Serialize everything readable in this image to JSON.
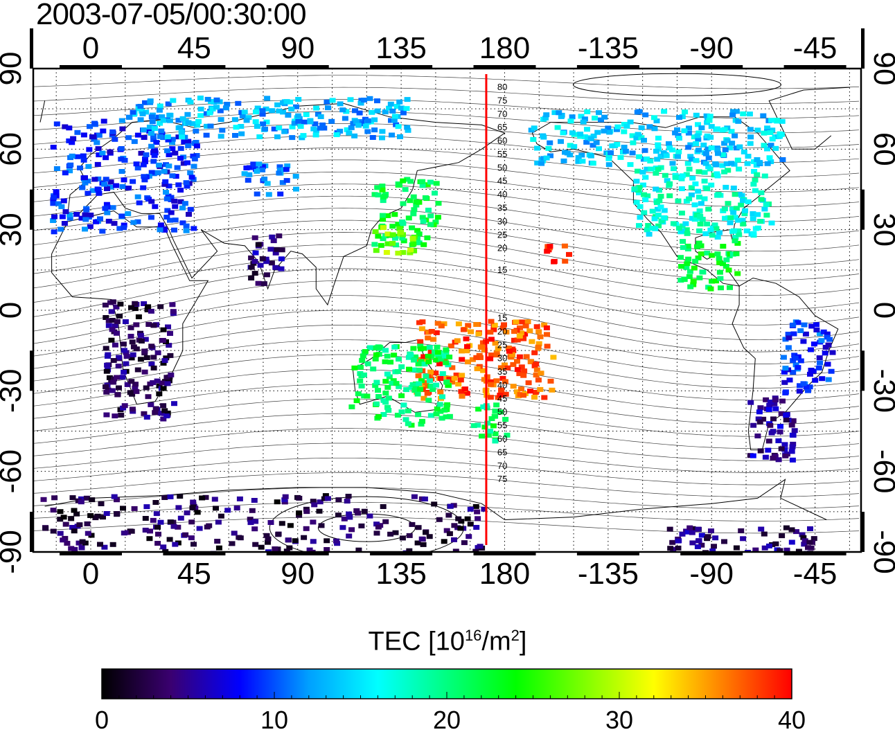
{
  "title": "2003-07-05/00:30:00",
  "map": {
    "top_ticks": [
      "0",
      "45",
      "90",
      "135",
      "180",
      "-135",
      "-90",
      "-45"
    ],
    "bottom_ticks": [
      "0",
      "45",
      "90",
      "135",
      "180",
      "-135",
      "-90",
      "-45"
    ],
    "left_ticks": [
      "90",
      "60",
      "30",
      "0",
      "-30",
      "-60",
      "-90"
    ],
    "right_ticks": [
      "90",
      "60",
      "30",
      "0",
      "-30",
      "-60",
      "-90"
    ],
    "marker_longitude": 172,
    "marker_color": "#ff0000",
    "mag_labels_north": [
      "80",
      "75",
      "70",
      "65",
      "60",
      "55",
      "50",
      "45",
      "40",
      "35",
      "30",
      "25",
      "20",
      "15"
    ],
    "mag_labels_south": [
      "15",
      "20",
      "25",
      "30",
      "35",
      "40",
      "45",
      "50",
      "55",
      "60",
      "65",
      "70",
      "75"
    ]
  },
  "colorbar": {
    "label_prefix": "TEC  [10",
    "label_exp": "16",
    "label_mid": "/m",
    "label_exp2": "2",
    "label_suffix": "]",
    "min": 0,
    "max": 40,
    "tick_labels": [
      "0",
      "10",
      "20",
      "30",
      "40"
    ],
    "colors": [
      "#000000",
      "#3a0070",
      "#0000ff",
      "#00a0ff",
      "#00ffff",
      "#00ff80",
      "#00ff00",
      "#80ff00",
      "#ffff00",
      "#ff8000",
      "#ff0000"
    ]
  },
  "tec_regions": [
    {
      "region": "europe",
      "lon": [
        -18,
        45
      ],
      "lat": [
        30,
        72
      ],
      "tec": 9
    },
    {
      "region": "arctic-eurasia",
      "lon": [
        15,
        140
      ],
      "lat": [
        65,
        80
      ],
      "tec": 13
    },
    {
      "region": "central-asia",
      "lon": [
        65,
        88
      ],
      "lat": [
        44,
        56
      ],
      "tec": 11
    },
    {
      "region": "east-asia",
      "lon": [
        122,
        150
      ],
      "lat": [
        25,
        50
      ],
      "tec": 22
    },
    {
      "region": "japan-south",
      "lon": [
        120,
        140
      ],
      "lat": [
        22,
        32
      ],
      "tec": 28
    },
    {
      "region": "pacific-islands",
      "lon": [
        140,
        200
      ],
      "lat": [
        -32,
        -3
      ],
      "tec": 37
    },
    {
      "region": "hawaii",
      "lon": [
        -163,
        -153
      ],
      "lat": [
        17,
        25
      ],
      "tec": 40
    },
    {
      "region": "australia",
      "lon": [
        112,
        155
      ],
      "lat": [
        -42,
        -12
      ],
      "tec": 21
    },
    {
      "region": "new-zealand",
      "lon": [
        165,
        180
      ],
      "lat": [
        -48,
        -34
      ],
      "tec": 21
    },
    {
      "region": "north-america",
      "lon": [
        -125,
        -65
      ],
      "lat": [
        28,
        55
      ],
      "tec": 17
    },
    {
      "region": "canada-north",
      "lon": [
        -170,
        -60
      ],
      "lat": [
        55,
        75
      ],
      "tec": 14
    },
    {
      "region": "central-america",
      "lon": [
        -105,
        -80
      ],
      "lat": [
        8,
        27
      ],
      "tec": 22
    },
    {
      "region": "brazil",
      "lon": [
        -60,
        -38
      ],
      "lat": [
        -30,
        -3
      ],
      "tec": 9
    },
    {
      "region": "south-america-south",
      "lon": [
        -75,
        -55
      ],
      "lat": [
        -55,
        -30
      ],
      "tec": 5
    },
    {
      "region": "africa",
      "lon": [
        5,
        35
      ],
      "lat": [
        -40,
        5
      ],
      "tec": 3
    },
    {
      "region": "india",
      "lon": [
        68,
        82
      ],
      "lat": [
        10,
        30
      ],
      "tec": 4
    },
    {
      "region": "antarctica",
      "lon": [
        -22,
        170
      ],
      "lat": [
        -90,
        -68
      ],
      "tec": 3
    },
    {
      "region": "antarctica-west",
      "lon": [
        -110,
        -45
      ],
      "lat": [
        -90,
        -80
      ],
      "tec": 4
    }
  ]
}
